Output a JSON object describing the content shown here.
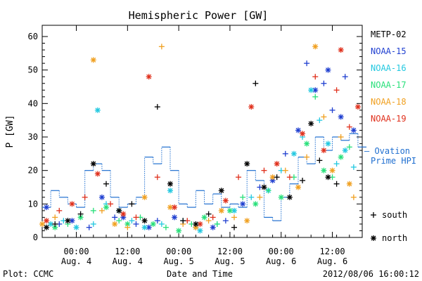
{
  "chart_data": {
    "type": "scatter",
    "title": "Hemispheric Power [GW]",
    "ylabel": "P [GW]",
    "xlabel": "Date and Time",
    "ylim": [
      0,
      60
    ],
    "yticks": [
      0,
      10,
      20,
      30,
      40,
      50,
      60
    ],
    "xlim_hours": [
      0,
      60
    ],
    "xticks": [
      {
        "time": "00:00",
        "date": "Aug. 4"
      },
      {
        "time": "12:00",
        "date": "Aug. 4"
      },
      {
        "time": "00:00",
        "date": "Aug. 5"
      },
      {
        "time": "12:00",
        "date": "Aug. 5"
      },
      {
        "time": "00:00",
        "date": "Aug. 6"
      },
      {
        "time": "12:00",
        "date": "Aug. 6"
      }
    ],
    "legend": {
      "placement": "right",
      "satellites": [
        {
          "name": "METP-02",
          "color": "#000000"
        },
        {
          "name": "NOAA-15",
          "color": "#1f3fd0"
        },
        {
          "name": "NOAA-16",
          "color": "#22c8e0"
        },
        {
          "name": "NOAA-17",
          "color": "#28e07a"
        },
        {
          "name": "NOAA-18",
          "color": "#f0a020"
        },
        {
          "name": "NOAA-19",
          "color": "#e0301c"
        }
      ],
      "model_label_1": "– Ovation",
      "model_label_2": "Prime HPI",
      "model_color": "#1f6fd0",
      "south_label": "south",
      "north_label": "north"
    },
    "ovation_hpi": [
      [
        0,
        9
      ],
      [
        2,
        14
      ],
      [
        4,
        12
      ],
      [
        6,
        10
      ],
      [
        8,
        9
      ],
      [
        10,
        20
      ],
      [
        12,
        22
      ],
      [
        14,
        20
      ],
      [
        16,
        12
      ],
      [
        18,
        9
      ],
      [
        20,
        10
      ],
      [
        22,
        12
      ],
      [
        24,
        24
      ],
      [
        26,
        22
      ],
      [
        28,
        27
      ],
      [
        30,
        20
      ],
      [
        32,
        10
      ],
      [
        34,
        9
      ],
      [
        36,
        14
      ],
      [
        38,
        10
      ],
      [
        40,
        13
      ],
      [
        42,
        9
      ],
      [
        44,
        10
      ],
      [
        46,
        9
      ],
      [
        48,
        20
      ],
      [
        50,
        17
      ],
      [
        52,
        6
      ],
      [
        54,
        5
      ],
      [
        56,
        12
      ],
      [
        58,
        16
      ],
      [
        60,
        24
      ],
      [
        62,
        22
      ],
      [
        64,
        30
      ],
      [
        66,
        26
      ],
      [
        68,
        30
      ],
      [
        70,
        29
      ],
      [
        72,
        31
      ],
      [
        74,
        27
      ]
    ],
    "series": [
      {
        "name": "NOAA-15",
        "color": "#1f3fd0",
        "points": [
          [
            1,
            9
          ],
          [
            4,
            4
          ],
          [
            7,
            5
          ],
          [
            11,
            3
          ],
          [
            14,
            12
          ],
          [
            17,
            6
          ],
          [
            19,
            6
          ],
          [
            22,
            4
          ],
          [
            25,
            3
          ],
          [
            27,
            5
          ],
          [
            31,
            6
          ],
          [
            36,
            3
          ],
          [
            40,
            3
          ],
          [
            43,
            5
          ],
          [
            47,
            10
          ],
          [
            51,
            15
          ],
          [
            54,
            17
          ],
          [
            57,
            25
          ],
          [
            60,
            32
          ],
          [
            62,
            52
          ],
          [
            64,
            44
          ],
          [
            66,
            46
          ],
          [
            67,
            50
          ],
          [
            68,
            38
          ],
          [
            70,
            36
          ],
          [
            71,
            48
          ],
          [
            73,
            32
          ]
        ]
      },
      {
        "name": "NOAA-16",
        "color": "#22c8e0",
        "points": [
          [
            2,
            4
          ],
          [
            5,
            5
          ],
          [
            8,
            3
          ],
          [
            12,
            4
          ],
          [
            13,
            38
          ],
          [
            15,
            10
          ],
          [
            18,
            8
          ],
          [
            21,
            5
          ],
          [
            24,
            3
          ],
          [
            28,
            4
          ],
          [
            30,
            14
          ],
          [
            33,
            5
          ],
          [
            37,
            2
          ],
          [
            41,
            4
          ],
          [
            45,
            8
          ],
          [
            49,
            12
          ],
          [
            53,
            14
          ],
          [
            56,
            20
          ],
          [
            59,
            25
          ],
          [
            61,
            30
          ],
          [
            63,
            44
          ],
          [
            65,
            35
          ],
          [
            67,
            28
          ],
          [
            69,
            22
          ],
          [
            71,
            26
          ],
          [
            73,
            21
          ]
        ]
      },
      {
        "name": "NOAA-17",
        "color": "#28e07a",
        "points": [
          [
            3,
            3
          ],
          [
            6,
            4
          ],
          [
            9,
            6
          ],
          [
            12,
            8
          ],
          [
            15,
            9
          ],
          [
            18,
            5
          ],
          [
            20,
            4
          ],
          [
            23,
            6
          ],
          [
            26,
            4
          ],
          [
            29,
            3
          ],
          [
            32,
            2
          ],
          [
            35,
            4
          ],
          [
            38,
            6
          ],
          [
            41,
            4
          ],
          [
            44,
            8
          ],
          [
            47,
            12
          ],
          [
            50,
            10
          ],
          [
            53,
            14
          ],
          [
            56,
            12
          ],
          [
            59,
            18
          ],
          [
            62,
            28
          ],
          [
            64,
            42
          ],
          [
            66,
            20
          ],
          [
            68,
            18
          ],
          [
            70,
            24
          ],
          [
            72,
            27
          ]
        ]
      },
      {
        "name": "NOAA-18",
        "color": "#f0a020",
        "points": [
          [
            0,
            4
          ],
          [
            3,
            6
          ],
          [
            12,
            53
          ],
          [
            14,
            8
          ],
          [
            17,
            4
          ],
          [
            20,
            3
          ],
          [
            24,
            12
          ],
          [
            28,
            57
          ],
          [
            30,
            9
          ],
          [
            33,
            4
          ],
          [
            36,
            3
          ],
          [
            39,
            5
          ],
          [
            42,
            8
          ],
          [
            45,
            6
          ],
          [
            48,
            5
          ],
          [
            51,
            12
          ],
          [
            54,
            18
          ],
          [
            57,
            20
          ],
          [
            60,
            15
          ],
          [
            62,
            24
          ],
          [
            64,
            57
          ],
          [
            66,
            36
          ],
          [
            68,
            20
          ],
          [
            70,
            30
          ],
          [
            72,
            16
          ],
          [
            73,
            12
          ]
        ]
      },
      {
        "name": "NOAA-19",
        "color": "#e0301c",
        "points": [
          [
            1,
            5
          ],
          [
            4,
            8
          ],
          [
            7,
            10
          ],
          [
            10,
            12
          ],
          [
            13,
            19
          ],
          [
            16,
            10
          ],
          [
            19,
            7
          ],
          [
            22,
            6
          ],
          [
            25,
            48
          ],
          [
            27,
            18
          ],
          [
            31,
            9
          ],
          [
            34,
            5
          ],
          [
            37,
            4
          ],
          [
            40,
            6
          ],
          [
            43,
            11
          ],
          [
            46,
            18
          ],
          [
            49,
            39
          ],
          [
            52,
            20
          ],
          [
            55,
            22
          ],
          [
            58,
            18
          ],
          [
            61,
            31
          ],
          [
            64,
            48
          ],
          [
            66,
            26
          ],
          [
            69,
            44
          ],
          [
            70,
            56
          ],
          [
            72,
            33
          ],
          [
            74,
            39
          ]
        ]
      },
      {
        "name": "METP-02",
        "color": "#000000",
        "points": [
          [
            1,
            3
          ],
          [
            3,
            4
          ],
          [
            6,
            5
          ],
          [
            9,
            7
          ],
          [
            12,
            22
          ],
          [
            15,
            16
          ],
          [
            18,
            8
          ],
          [
            21,
            10
          ],
          [
            24,
            5
          ],
          [
            27,
            39
          ],
          [
            30,
            16
          ],
          [
            33,
            5
          ],
          [
            36,
            4
          ],
          [
            39,
            7
          ],
          [
            42,
            14
          ],
          [
            45,
            3
          ],
          [
            48,
            22
          ],
          [
            50,
            46
          ],
          [
            52,
            15
          ],
          [
            55,
            18
          ],
          [
            58,
            12
          ],
          [
            61,
            17
          ],
          [
            63,
            34
          ],
          [
            65,
            23
          ],
          [
            67,
            18
          ],
          [
            69,
            16
          ]
        ]
      }
    ],
    "grid": false
  },
  "footer": {
    "plot_credit": "Plot: CCMC",
    "timestamp": "2012/08/06 16:00:12"
  }
}
